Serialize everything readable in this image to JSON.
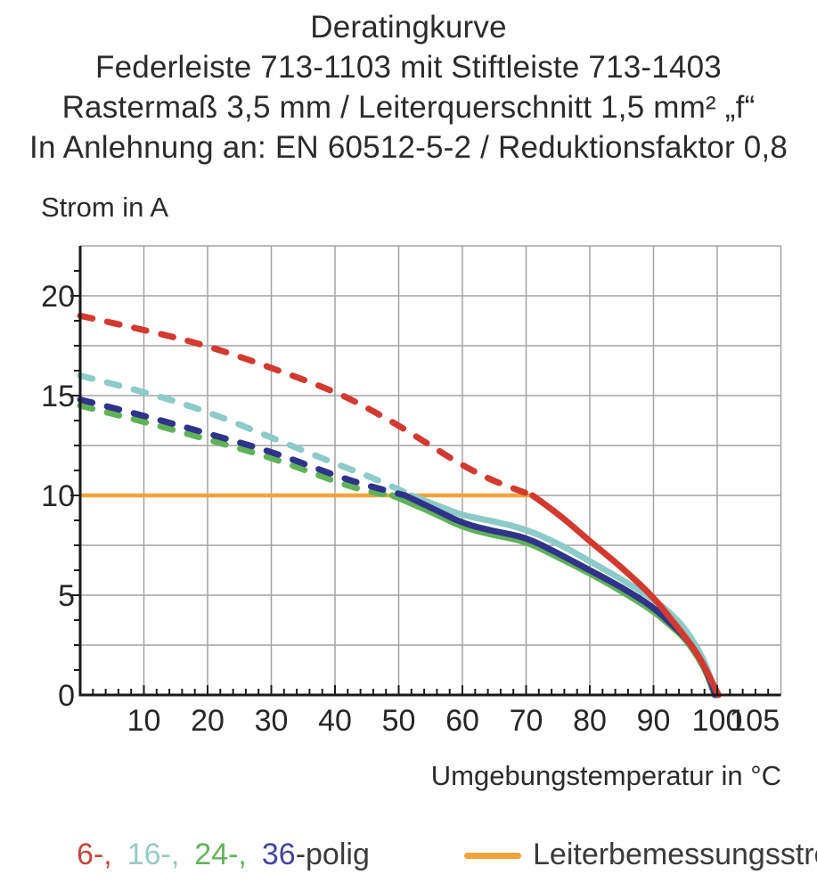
{
  "header": {
    "lines": [
      "Deratingkurve",
      "Federleiste 713-1103 mit Stiftleiste 713-1403",
      "Rastermaß 3,5 mm / Leiterquerschnitt 1,5 mm² „f“",
      "In Anlehnung an: EN 60512-5-2 / Reduktionsfaktor 0,8"
    ]
  },
  "chart_data": {
    "type": "line",
    "title": "Deratingkurve",
    "xlabel": "Umgebungstemperatur in °C",
    "ylabel": "Strom in A",
    "xlim": [
      0,
      110
    ],
    "ylim": [
      0,
      22.5
    ],
    "grid": true,
    "grid_x_step": 10,
    "grid_y_step": 2.5,
    "xticks": [
      10,
      20,
      30,
      40,
      50,
      60,
      70,
      80,
      90,
      100,
      105
    ],
    "yticks": [
      0,
      5,
      10,
      15,
      20
    ],
    "minor_tick_x_step": 2,
    "minor_tick_y_step": 1.25,
    "colors": {
      "grid": "#a3a3a3",
      "axis": "#1a1a1a",
      "tick_text": "#262626"
    },
    "series": [
      {
        "name": "24-polig",
        "color": "#5fb258",
        "dashed": [
          [
            0,
            14.5
          ],
          [
            10,
            13.7
          ],
          [
            20,
            12.8
          ],
          [
            30,
            11.9
          ],
          [
            40,
            10.7
          ],
          [
            45,
            10.2
          ],
          [
            49,
            10
          ]
        ],
        "solid": [
          [
            49,
            10
          ],
          [
            55,
            9.2
          ],
          [
            60,
            8.4
          ],
          [
            65,
            8.0
          ],
          [
            70,
            7.7
          ],
          [
            75,
            6.9
          ],
          [
            80,
            6.1
          ],
          [
            85,
            5.2
          ],
          [
            90,
            4.2
          ],
          [
            93,
            3.4
          ],
          [
            95,
            2.8
          ],
          [
            97,
            1.9
          ],
          [
            98.5,
            1.0
          ],
          [
            99.6,
            0
          ]
        ]
      },
      {
        "name": "16-polig",
        "color": "#8ccbc7",
        "dashed": [
          [
            0,
            16
          ],
          [
            10,
            15.2
          ],
          [
            20,
            14.2
          ],
          [
            30,
            12.9
          ],
          [
            40,
            11.6
          ],
          [
            45,
            11.0
          ],
          [
            50,
            10.3
          ],
          [
            52,
            10
          ]
        ],
        "solid": [
          [
            52,
            10
          ],
          [
            56,
            9.5
          ],
          [
            60,
            9.0
          ],
          [
            65,
            8.7
          ],
          [
            70,
            8.3
          ],
          [
            75,
            7.6
          ],
          [
            80,
            6.7
          ],
          [
            85,
            5.8
          ],
          [
            90,
            4.8
          ],
          [
            93,
            4.0
          ],
          [
            95,
            3.3
          ],
          [
            97,
            2.3
          ],
          [
            98.5,
            1.3
          ],
          [
            99.8,
            0
          ]
        ]
      },
      {
        "name": "36-polig",
        "color": "#30338a",
        "dashed": [
          [
            0,
            14.8
          ],
          [
            10,
            14.0
          ],
          [
            20,
            13.1
          ],
          [
            30,
            12.2
          ],
          [
            40,
            11.0
          ],
          [
            45,
            10.5
          ],
          [
            51,
            10
          ]
        ],
        "solid": [
          [
            51,
            10
          ],
          [
            55,
            9.4
          ],
          [
            60,
            8.6
          ],
          [
            65,
            8.2
          ],
          [
            70,
            7.9
          ],
          [
            75,
            7.1
          ],
          [
            80,
            6.25
          ],
          [
            85,
            5.4
          ],
          [
            90,
            4.4
          ],
          [
            93,
            3.5
          ],
          [
            95,
            2.9
          ],
          [
            97,
            2.0
          ],
          [
            98.5,
            1.1
          ],
          [
            99.7,
            0
          ]
        ]
      },
      {
        "name": "6-polig",
        "color": "#d23a30",
        "dashed": [
          [
            0,
            19
          ],
          [
            10,
            18.3
          ],
          [
            20,
            17.5
          ],
          [
            30,
            16.4
          ],
          [
            40,
            15.2
          ],
          [
            45,
            14.4
          ],
          [
            50,
            13.5
          ],
          [
            55,
            12.5
          ],
          [
            60,
            11.5
          ],
          [
            65,
            10.7
          ],
          [
            71,
            10
          ]
        ],
        "solid": [
          [
            71,
            10
          ],
          [
            75,
            9.1
          ],
          [
            80,
            7.7
          ],
          [
            85,
            6.4
          ],
          [
            90,
            4.9
          ],
          [
            93,
            3.7
          ],
          [
            95,
            2.9
          ],
          [
            97,
            2.0
          ],
          [
            98.5,
            1.1
          ],
          [
            100.2,
            0
          ]
        ]
      }
    ],
    "reference_line": {
      "label": "Leiterbemessungsstrom",
      "color": "#f2a33c",
      "y": 10,
      "x_start": 0,
      "x_end": 71
    },
    "legend_position": "bottom"
  },
  "legend": {
    "entries": [
      {
        "label": "6-,",
        "color": "#c9453d"
      },
      {
        "label": "16-,",
        "color": "#9bcac5"
      },
      {
        "label": "24-,",
        "color": "#66b15e"
      },
      {
        "label": "36",
        "color": "#44459b"
      }
    ],
    "suffix": "-polig",
    "reference_label": "Leiterbemessungsstrom"
  },
  "labels": {
    "y_axis": "Strom in A",
    "x_axis": "Umgebungstemperatur in °C"
  }
}
